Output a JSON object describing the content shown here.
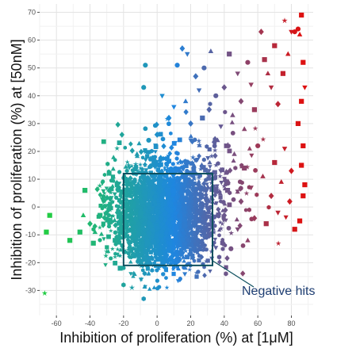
{
  "chart_data": {
    "type": "scatter",
    "title": "",
    "xlabel": "Inhibition of proliferation (%) at [1μM]",
    "ylabel": "Inhibition of proliferation (%) at [50nM]",
    "xlim": [
      -70,
      93
    ],
    "ylim": [
      -39,
      73
    ],
    "x_ticks": [
      "-60",
      "-40",
      "-20",
      "0",
      "20",
      "40",
      "60",
      "80"
    ],
    "y_ticks": [
      "-30",
      "-20",
      "-10",
      "0",
      "10",
      "20",
      "30",
      "40",
      "50",
      "60",
      "70"
    ],
    "grid": true,
    "legend": "none",
    "color_scale": {
      "low": "#22cc44",
      "mid": "#1f86e0",
      "high": "#dd1111"
    },
    "highlight_box": {
      "x": [
        -20,
        33
      ],
      "y": [
        -21,
        12
      ],
      "color": "#0d4f5e"
    },
    "annotation": {
      "text": "Negative hits",
      "color": "#1f3f73"
    },
    "points": [
      {
        "x": -67,
        "y": -31,
        "s": "star"
      },
      {
        "x": -66,
        "y": -9,
        "s": "square"
      },
      {
        "x": -64,
        "y": -3,
        "s": "square"
      },
      {
        "x": -52,
        "y": -12,
        "s": "square"
      },
      {
        "x": -46,
        "y": -9,
        "s": "square"
      },
      {
        "x": -44,
        "y": -3,
        "s": "triangle"
      },
      {
        "x": -43,
        "y": 6,
        "s": "square"
      },
      {
        "x": -40,
        "y": -6,
        "s": "diamond"
      },
      {
        "x": -38,
        "y": -13,
        "s": "square"
      },
      {
        "x": -37,
        "y": -9,
        "s": "triangle"
      },
      {
        "x": -34,
        "y": -3,
        "s": "square"
      },
      {
        "x": -30,
        "y": -16,
        "s": "star"
      },
      {
        "x": -28,
        "y": 3,
        "s": "diamond"
      },
      {
        "x": -27,
        "y": -5,
        "s": "triangle"
      },
      {
        "x": -25,
        "y": -12,
        "s": "square"
      },
      {
        "x": -24,
        "y": 8,
        "s": "hexagon"
      },
      {
        "x": -22,
        "y": -22,
        "s": "square"
      },
      {
        "x": -20,
        "y": -28,
        "s": "hexagon"
      },
      {
        "x": -17,
        "y": 15,
        "s": "star"
      },
      {
        "x": -15,
        "y": -29,
        "s": "star"
      },
      {
        "x": -12,
        "y": 19,
        "s": "triangle"
      },
      {
        "x": -8,
        "y": -33,
        "s": "hexagon"
      },
      {
        "x": -5,
        "y": 24,
        "s": "circle"
      },
      {
        "x": 0,
        "y": 26,
        "s": "diamond"
      },
      {
        "x": -8,
        "y": 43,
        "s": "circle"
      },
      {
        "x": -7,
        "y": 51,
        "s": "circle"
      },
      {
        "x": 3,
        "y": 40,
        "s": "invtriangle"
      },
      {
        "x": 7,
        "y": 32,
        "s": "diamond"
      },
      {
        "x": 10,
        "y": 36,
        "s": "invtriangle"
      },
      {
        "x": 12,
        "y": 51,
        "s": "circle"
      },
      {
        "x": 15,
        "y": 57,
        "s": "diamond"
      },
      {
        "x": 17,
        "y": 38,
        "s": "triangle"
      },
      {
        "x": 18,
        "y": 55,
        "s": "invtriangle"
      },
      {
        "x": 20,
        "y": 30,
        "s": "diamond"
      },
      {
        "x": 23,
        "y": 47,
        "s": "diamond"
      },
      {
        "x": 25,
        "y": 42,
        "s": "invtriangle"
      },
      {
        "x": 27,
        "y": 32,
        "s": "square"
      },
      {
        "x": 28,
        "y": 50,
        "s": "circle"
      },
      {
        "x": 32,
        "y": 56,
        "s": "triangle"
      },
      {
        "x": 31,
        "y": 35,
        "s": "diamond"
      },
      {
        "x": 35,
        "y": 40,
        "s": "circle"
      },
      {
        "x": 38,
        "y": 29,
        "s": "invtriangle"
      },
      {
        "x": 40,
        "y": 43,
        "s": "diamond"
      },
      {
        "x": 43,
        "y": 55,
        "s": "square"
      },
      {
        "x": 45,
        "y": 33,
        "s": "triangle"
      },
      {
        "x": 48,
        "y": 48,
        "s": "invtriangle"
      },
      {
        "x": 50,
        "y": 38,
        "s": "diamond"
      },
      {
        "x": 52,
        "y": 28,
        "s": "triangle"
      },
      {
        "x": 54,
        "y": 52,
        "s": "circle"
      },
      {
        "x": 56,
        "y": 44,
        "s": "invtriangle"
      },
      {
        "x": 58,
        "y": 35,
        "s": "square"
      },
      {
        "x": 62,
        "y": 63,
        "s": "diamond"
      },
      {
        "x": 64,
        "y": 53,
        "s": "square"
      },
      {
        "x": 66,
        "y": 48,
        "s": "triangle"
      },
      {
        "x": 68,
        "y": 43,
        "s": "invtriangle"
      },
      {
        "x": 70,
        "y": 58,
        "s": "square"
      },
      {
        "x": 72,
        "y": 37,
        "s": "diamond"
      },
      {
        "x": 75,
        "y": 48,
        "s": "square"
      },
      {
        "x": 76,
        "y": 67,
        "s": "star"
      },
      {
        "x": 78,
        "y": 55,
        "s": "triangle"
      },
      {
        "x": 80,
        "y": 63,
        "s": "invtriangle"
      },
      {
        "x": 82,
        "y": 63,
        "s": "circle"
      },
      {
        "x": 84,
        "y": 64,
        "s": "circle"
      },
      {
        "x": 85,
        "y": 62,
        "s": "triangle"
      },
      {
        "x": 86,
        "y": 69,
        "s": "square"
      },
      {
        "x": 87,
        "y": 52,
        "s": "square"
      },
      {
        "x": 88,
        "y": 43,
        "s": "invtriangle"
      },
      {
        "x": 86,
        "y": 38,
        "s": "square"
      },
      {
        "x": 84,
        "y": 30,
        "s": "square"
      },
      {
        "x": 87,
        "y": 22,
        "s": "square"
      },
      {
        "x": 86,
        "y": 15,
        "s": "square"
      },
      {
        "x": 88,
        "y": 8,
        "s": "square"
      },
      {
        "x": 87,
        "y": 4,
        "s": "square"
      },
      {
        "x": 85,
        "y": -5,
        "s": "square"
      },
      {
        "x": 79,
        "y": 2,
        "s": "diamond"
      },
      {
        "x": 82,
        "y": -8,
        "s": "square"
      },
      {
        "x": 80,
        "y": 13,
        "s": "diamond"
      },
      {
        "x": 76,
        "y": 21,
        "s": "invtriangle"
      },
      {
        "x": 74,
        "y": 9,
        "s": "triangle"
      },
      {
        "x": 72,
        "y": -2,
        "s": "invtriangle"
      },
      {
        "x": 70,
        "y": 16,
        "s": "square"
      },
      {
        "x": 68,
        "y": 4,
        "s": "diamond"
      },
      {
        "x": 65,
        "y": -6,
        "s": "square"
      },
      {
        "x": 63,
        "y": 11,
        "s": "triangle"
      },
      {
        "x": 60,
        "y": 22,
        "s": "circle"
      },
      {
        "x": 58,
        "y": -4,
        "s": "diamond"
      },
      {
        "x": 56,
        "y": 7,
        "s": "invtriangle"
      },
      {
        "x": 54,
        "y": -12,
        "s": "triangle"
      },
      {
        "x": 52,
        "y": 14,
        "s": "square"
      },
      {
        "x": 50,
        "y": 2,
        "s": "diamond"
      },
      {
        "x": 48,
        "y": -8,
        "s": "invtriangle"
      },
      {
        "x": 46,
        "y": 19,
        "s": "triangle"
      },
      {
        "x": 44,
        "y": -15,
        "s": "circle"
      },
      {
        "x": 42,
        "y": 6,
        "s": "square"
      },
      {
        "x": 40,
        "y": -3,
        "s": "diamond"
      },
      {
        "x": 38,
        "y": 13,
        "s": "invtriangle"
      },
      {
        "x": 37,
        "y": -18,
        "s": "hexagon"
      },
      {
        "x": 36,
        "y": 24,
        "s": "triangle"
      },
      {
        "x": 41,
        "y": -24,
        "s": "hexagon"
      }
    ]
  }
}
